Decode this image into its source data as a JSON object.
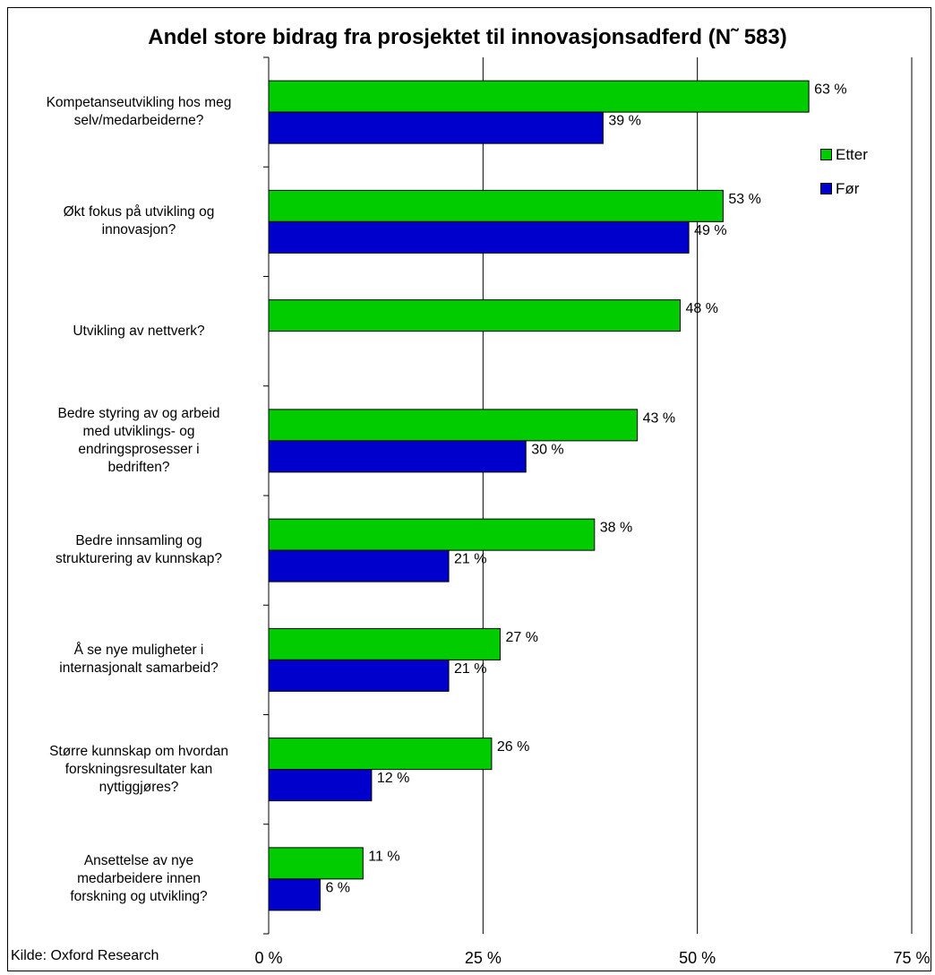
{
  "chart_data": {
    "type": "bar",
    "orientation": "horizontal",
    "title": "Andel store bidrag fra prosjektet til innovasjonsadferd (N˜ 583)",
    "source": "Kilde: Oxford Research",
    "categories": [
      "Kompetanseutvikling hos meg selv/medarbeiderne?",
      "Økt fokus på utvikling og innovasjon?",
      "Utvikling av nettverk?",
      "Bedre styring av og arbeid med utviklings- og endringsprosesser i bedriften?",
      "Bedre innsamling og strukturering av kunnskap?",
      "Å se nye muligheter i internasjonalt samarbeid?",
      "Større kunnskap om hvordan forskningsresultater kan nyttiggjøres?",
      "Ansettelse av nye medarbeidere innen forskning og utvikling?"
    ],
    "category_label_lines": [
      [
        "Kompetanseutvikling hos meg",
        "selv/medarbeiderne?"
      ],
      [
        "Økt fokus på utvikling og",
        "innovasjon?"
      ],
      [
        "Utvikling av nettverk?"
      ],
      [
        "Bedre styring av og arbeid",
        "med utviklings- og",
        "endringsprosesser i",
        "bedriften?"
      ],
      [
        "Bedre innsamling og",
        "strukturering av kunnskap?"
      ],
      [
        "Å se nye muligheter i",
        "internasjonalt samarbeid?"
      ],
      [
        "Større kunnskap om hvordan",
        "forskningsresultater kan",
        "nyttiggjøres?"
      ],
      [
        "Ansettelse av nye",
        "medarbeidere innen",
        "forskning og utvikling?"
      ]
    ],
    "series": [
      {
        "name": "Etter",
        "color": "#00cc00",
        "values": [
          63,
          53,
          48,
          43,
          38,
          27,
          26,
          11
        ],
        "labels": [
          "63 %",
          "53 %",
          "48 %",
          "43 %",
          "38 %",
          "27 %",
          "26 %",
          "11 %"
        ]
      },
      {
        "name": "Før",
        "color": "#0000cc",
        "values": [
          39,
          49,
          null,
          30,
          21,
          21,
          12,
          6
        ],
        "labels": [
          "39 %",
          "49 %",
          "",
          "30 %",
          "21 %",
          "21 %",
          "12 %",
          "6 %"
        ]
      }
    ],
    "xlim": [
      0,
      75
    ],
    "xticks": [
      0,
      25,
      50,
      75
    ],
    "xtick_labels": [
      "0 %",
      "25 %",
      "50 %",
      "75 %"
    ],
    "grid": true,
    "legend_position": "right"
  }
}
